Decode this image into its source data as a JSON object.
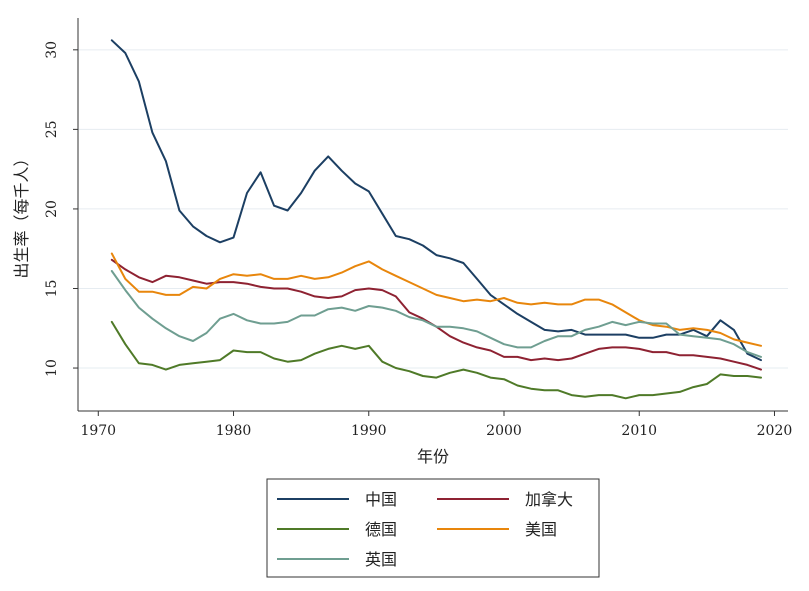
{
  "chart_data": {
    "type": "line",
    "title": "",
    "xlabel": "年份",
    "ylabel": "出生率（每千人）",
    "xlim": [
      1968.5,
      2021
    ],
    "ylim": [
      7.3,
      32
    ],
    "xticks": [
      1970,
      1980,
      1990,
      2000,
      2010,
      2020
    ],
    "yticks": [
      10,
      15,
      20,
      25,
      30
    ],
    "grid": true,
    "legend_position": "bottom",
    "x": [
      1971,
      1972,
      1973,
      1974,
      1975,
      1976,
      1977,
      1978,
      1979,
      1980,
      1981,
      1982,
      1983,
      1984,
      1985,
      1986,
      1987,
      1988,
      1989,
      1990,
      1991,
      1992,
      1993,
      1994,
      1995,
      1996,
      1997,
      1998,
      1999,
      2000,
      2001,
      2002,
      2003,
      2004,
      2005,
      2006,
      2007,
      2008,
      2009,
      2010,
      2011,
      2012,
      2013,
      2014,
      2015,
      2016,
      2017,
      2018,
      2019
    ],
    "series": [
      {
        "name": "中国",
        "color": "#1c3f63",
        "values": [
          30.6,
          29.8,
          28.0,
          24.8,
          23.0,
          19.9,
          18.9,
          18.3,
          17.9,
          18.2,
          21.0,
          22.3,
          20.2,
          19.9,
          21.0,
          22.4,
          23.3,
          22.4,
          21.6,
          21.1,
          19.7,
          18.3,
          18.1,
          17.7,
          17.1,
          16.9,
          16.6,
          15.6,
          14.6,
          14.0,
          13.4,
          12.9,
          12.4,
          12.3,
          12.4,
          12.1,
          12.1,
          12.1,
          12.1,
          11.9,
          11.9,
          12.1,
          12.1,
          12.4,
          12.0,
          13.0,
          12.4,
          10.9,
          10.5
        ]
      },
      {
        "name": "加拿大",
        "color": "#8e2232",
        "values": [
          16.8,
          16.2,
          15.7,
          15.4,
          15.8,
          15.7,
          15.5,
          15.3,
          15.4,
          15.4,
          15.3,
          15.1,
          15.0,
          15.0,
          14.8,
          14.5,
          14.4,
          14.5,
          14.9,
          15.0,
          14.9,
          14.5,
          13.5,
          13.1,
          12.6,
          12.0,
          11.6,
          11.3,
          11.1,
          10.7,
          10.7,
          10.5,
          10.6,
          10.5,
          10.6,
          10.9,
          11.2,
          11.3,
          11.3,
          11.2,
          11.0,
          11.0,
          10.8,
          10.8,
          10.7,
          10.6,
          10.4,
          10.2,
          9.9
        ]
      },
      {
        "name": "德国",
        "color": "#4f7a28",
        "values": [
          12.9,
          11.5,
          10.3,
          10.2,
          9.9,
          10.2,
          10.3,
          10.4,
          10.5,
          11.1,
          11.0,
          11.0,
          10.6,
          10.4,
          10.5,
          10.9,
          11.2,
          11.4,
          11.2,
          11.4,
          10.4,
          10.0,
          9.8,
          9.5,
          9.4,
          9.7,
          9.9,
          9.7,
          9.4,
          9.3,
          8.9,
          8.7,
          8.6,
          8.6,
          8.3,
          8.2,
          8.3,
          8.3,
          8.1,
          8.3,
          8.3,
          8.4,
          8.5,
          8.8,
          9.0,
          9.6,
          9.5,
          9.5,
          9.4
        ]
      },
      {
        "name": "美国",
        "color": "#e8860c",
        "values": [
          17.2,
          15.6,
          14.8,
          14.8,
          14.6,
          14.6,
          15.1,
          15.0,
          15.6,
          15.9,
          15.8,
          15.9,
          15.6,
          15.6,
          15.8,
          15.6,
          15.7,
          16.0,
          16.4,
          16.7,
          16.2,
          15.8,
          15.4,
          15.0,
          14.6,
          14.4,
          14.2,
          14.3,
          14.2,
          14.4,
          14.1,
          14.0,
          14.1,
          14.0,
          14.0,
          14.3,
          14.3,
          14.0,
          13.5,
          13.0,
          12.7,
          12.6,
          12.4,
          12.5,
          12.4,
          12.2,
          11.8,
          11.6,
          11.4
        ]
      },
      {
        "name": "英国",
        "color": "#6f9e91",
        "values": [
          16.1,
          14.9,
          13.8,
          13.1,
          12.5,
          12.0,
          11.7,
          12.2,
          13.1,
          13.4,
          13.0,
          12.8,
          12.8,
          12.9,
          13.3,
          13.3,
          13.7,
          13.8,
          13.6,
          13.9,
          13.8,
          13.6,
          13.2,
          13.0,
          12.6,
          12.6,
          12.5,
          12.3,
          11.9,
          11.5,
          11.3,
          11.3,
          11.7,
          12.0,
          12.0,
          12.4,
          12.6,
          12.9,
          12.7,
          12.9,
          12.8,
          12.8,
          12.1,
          12.0,
          11.9,
          11.8,
          11.5,
          11.0,
          10.7
        ]
      }
    ]
  }
}
